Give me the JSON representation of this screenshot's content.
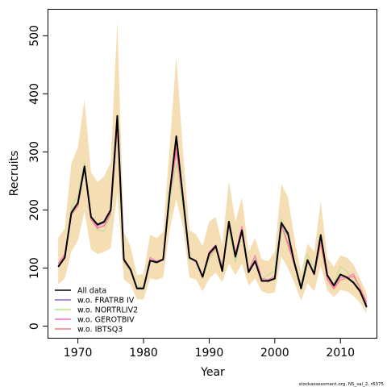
{
  "chart_data": {
    "type": "line",
    "xlabel": "Year",
    "ylabel": "Recruits",
    "xlim": [
      1965.5,
      2015.5
    ],
    "ylim": [
      -20,
      545
    ],
    "xticks": [
      1970,
      1980,
      1990,
      2000,
      2010
    ],
    "xtick_labels": [
      "1970",
      "1980",
      "1990",
      "2000",
      "2010"
    ],
    "yticks": [
      0,
      100,
      200,
      300,
      400,
      500
    ],
    "ytick_labels": [
      "0",
      "100",
      "200",
      "300",
      "400",
      "500"
    ],
    "legend_position": "bottom-left",
    "x": [
      1967,
      1968,
      1969,
      1970,
      1971,
      1972,
      1973,
      1974,
      1975,
      1976,
      1977,
      1978,
      1979,
      1980,
      1981,
      1982,
      1983,
      1984,
      1985,
      1986,
      1987,
      1988,
      1989,
      1990,
      1991,
      1992,
      1993,
      1994,
      1995,
      1996,
      1997,
      1998,
      1999,
      2000,
      2001,
      2002,
      2003,
      2004,
      2005,
      2006,
      2007,
      2008,
      2009,
      2010,
      2011,
      2012,
      2013,
      2014
    ],
    "confidence_band": {
      "color": "#f5deb3",
      "upper": [
        152,
        168,
        280,
        308,
        390,
        265,
        248,
        258,
        282,
        525,
        162,
        138,
        88,
        90,
        157,
        152,
        162,
        312,
        465,
        302,
        165,
        158,
        138,
        180,
        188,
        140,
        250,
        180,
        222,
        128,
        152,
        115,
        112,
        128,
        245,
        222,
        150,
        92,
        142,
        128,
        215,
        118,
        102,
        122,
        118,
        106,
        82,
        56
      ],
      "lower": [
        72,
        82,
        128,
        148,
        198,
        132,
        124,
        128,
        134,
        230,
        80,
        72,
        46,
        46,
        82,
        80,
        84,
        168,
        218,
        172,
        84,
        80,
        60,
        82,
        92,
        76,
        108,
        88,
        108,
        70,
        82,
        60,
        56,
        58,
        120,
        100,
        74,
        44,
        74,
        60,
        104,
        62,
        50,
        62,
        60,
        52,
        40,
        22
      ]
    },
    "series": [
      {
        "name": "All data",
        "color": "#000000",
        "values": [
          102,
          118,
          195,
          212,
          275,
          188,
          175,
          180,
          200,
          362,
          115,
          98,
          65,
          65,
          113,
          110,
          115,
          230,
          327,
          222,
          118,
          112,
          85,
          125,
          138,
          95,
          180,
          120,
          165,
          93,
          112,
          78,
          78,
          82,
          178,
          160,
          108,
          65,
          114,
          90,
          157,
          88,
          70,
          89,
          84,
          75,
          60,
          33
        ]
      },
      {
        "name": "w.o. FRATRB IV",
        "color": "#9966cc",
        "values": [
          103,
          119,
          197,
          214,
          277,
          187,
          173,
          178,
          198,
          355,
          114,
          97,
          64,
          64,
          112,
          109,
          114,
          227,
          320,
          219,
          117,
          111,
          84,
          124,
          136,
          94,
          177,
          118,
          163,
          92,
          110,
          77,
          77,
          81,
          175,
          156,
          106,
          64,
          112,
          89,
          154,
          87,
          69,
          88,
          83,
          74,
          59,
          32
        ]
      },
      {
        "name": "w.o. NORTRLIV2",
        "color": "#b5e08a",
        "values": [
          106,
          123,
          205,
          225,
          282,
          190,
          165,
          164,
          192,
          330,
          110,
          94,
          68,
          68,
          120,
          108,
          116,
          215,
          280,
          205,
          115,
          114,
          83,
          115,
          130,
          108,
          165,
          110,
          168,
          98,
          118,
          80,
          88,
          96,
          185,
          140,
          112,
          72,
          124,
          100,
          148,
          82,
          72,
          103,
          94,
          78,
          62,
          40
        ]
      },
      {
        "name": "w.o. GEROTBIV",
        "color": "#ff66cc",
        "values": [
          108,
          124,
          196,
          210,
          272,
          185,
          170,
          172,
          194,
          338,
          112,
          96,
          66,
          66,
          118,
          112,
          116,
          225,
          300,
          215,
          118,
          110,
          84,
          128,
          140,
          102,
          178,
          126,
          172,
          96,
          122,
          82,
          80,
          86,
          172,
          144,
          110,
          70,
          110,
          92,
          145,
          84,
          66,
          84,
          84,
          90,
          64,
          38
        ]
      },
      {
        "name": "w.o. IBTSQ3",
        "color": "#f47c7c",
        "values": [
          104,
          121,
          192,
          206,
          270,
          184,
          168,
          174,
          196,
          345,
          113,
          97,
          65,
          65,
          114,
          111,
          115,
          228,
          310,
          218,
          118,
          113,
          86,
          120,
          134,
          96,
          172,
          122,
          160,
          96,
          114,
          80,
          76,
          84,
          174,
          140,
          104,
          68,
          112,
          88,
          142,
          80,
          64,
          80,
          82,
          86,
          66,
          42
        ]
      }
    ]
  },
  "footnote": "stockassessment.org, NS_sai_2, r6375"
}
